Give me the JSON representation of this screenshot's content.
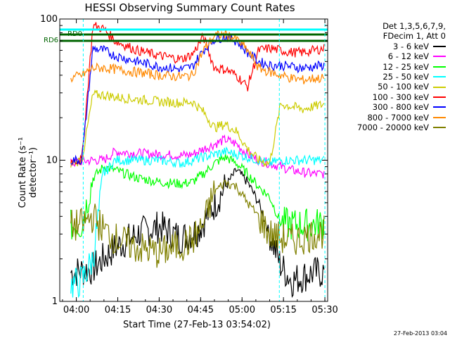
{
  "chart_data": {
    "type": "line",
    "title": "HESSI Observing Summary Count Rates",
    "xlabel": "Start Time (27-Feb-13 03:54:02)",
    "ylabel": "Count Rate (s⁻¹ detector⁻¹)",
    "yscale": "log",
    "ylim": [
      1,
      100
    ],
    "y_ticks": [
      "1",
      "10",
      "100"
    ],
    "xlim_minutes": [
      0,
      97
    ],
    "x_ticks": [
      "04:00",
      "04:15",
      "04:30",
      "04:45",
      "05:00",
      "05:15",
      "05:30"
    ],
    "grid": false,
    "legend_position": "right",
    "legend_header": [
      "Det 1,3,5,6,7,9,",
      "FDecim 1, Att 0"
    ],
    "attenuator_labels": [
      "RD0",
      "RD6"
    ],
    "series": [
      {
        "name": "3 - 6 keV",
        "color": "#000000",
        "x": [
          4,
          12,
          20,
          28,
          36,
          44,
          50,
          55,
          60,
          64,
          68,
          72,
          76,
          80,
          84,
          88,
          92,
          96
        ],
        "values": [
          1.6,
          1.7,
          2.4,
          3.0,
          3.4,
          2.8,
          3.2,
          4.5,
          6.5,
          8.5,
          7.0,
          5.0,
          3.0,
          1.8,
          1.4,
          1.5,
          1.6,
          1.6
        ]
      },
      {
        "name": "6 - 12 keV",
        "color": "#ff00ff",
        "x": [
          4,
          8,
          12,
          16,
          20,
          28,
          36,
          44,
          48,
          52,
          56,
          60,
          64,
          68,
          72,
          76,
          80,
          84,
          88,
          92,
          96
        ],
        "values": [
          9.5,
          9.8,
          10,
          10,
          11.5,
          11.2,
          11.0,
          10.8,
          11.0,
          12,
          13,
          14,
          13,
          11,
          10,
          9.5,
          9.0,
          8.5,
          8.2,
          8.0,
          8.0
        ]
      },
      {
        "name": "12 - 25 keV",
        "color": "#00ff00",
        "x": [
          4,
          8,
          12,
          16,
          20,
          28,
          36,
          44,
          48,
          52,
          56,
          60,
          64,
          68,
          72,
          76,
          80,
          84,
          88,
          92,
          96
        ],
        "values": [
          3.4,
          3.5,
          7.5,
          9.0,
          8.5,
          7.5,
          7.0,
          6.8,
          7.0,
          8.0,
          9.5,
          10.5,
          9.5,
          8.0,
          6.5,
          5.5,
          3.6,
          3.5,
          3.5,
          3.5,
          3.6
        ]
      },
      {
        "name": "25 - 50 keV",
        "color": "#00ffff",
        "x": [
          4,
          8,
          12,
          16,
          20,
          28,
          36,
          44,
          48,
          52,
          56,
          60,
          64,
          68,
          72,
          76,
          80,
          84,
          88,
          92,
          96
        ],
        "values": [
          1.3,
          1.4,
          2.0,
          8.0,
          10,
          10,
          10,
          9.5,
          10,
          10.5,
          11,
          11.5,
          11,
          10.5,
          10,
          9.5,
          10,
          10,
          10,
          10,
          10
        ]
      },
      {
        "name": "50 - 100 keV",
        "color": "#cccc00",
        "x": [
          4,
          8,
          12,
          16,
          20,
          28,
          36,
          44,
          48,
          52,
          56,
          60,
          64,
          68,
          72,
          76,
          80,
          84,
          88,
          92,
          96
        ],
        "values": [
          9.5,
          10,
          29,
          29,
          28,
          27,
          26,
          25.5,
          26,
          22,
          17,
          18,
          16,
          12,
          10,
          9.5,
          25,
          24,
          23,
          24,
          25
        ]
      },
      {
        "name": "100 - 300 keV",
        "color": "#ff0000",
        "x": [
          4,
          8,
          12,
          16,
          20,
          28,
          36,
          44,
          48,
          52,
          56,
          60,
          64,
          68,
          72,
          76,
          80,
          84,
          88,
          92,
          96
        ],
        "values": [
          10,
          10,
          90,
          85,
          70,
          60,
          55,
          52,
          56,
          75,
          45,
          44,
          40,
          33,
          60,
          62,
          60,
          58,
          58,
          60,
          62
        ]
      },
      {
        "name": "300 - 800 keV",
        "color": "#0000ff",
        "x": [
          4,
          8,
          12,
          16,
          20,
          28,
          36,
          44,
          48,
          52,
          56,
          60,
          64,
          68,
          72,
          76,
          80,
          84,
          88,
          92,
          96
        ],
        "values": [
          10,
          10,
          62,
          60,
          55,
          50,
          46,
          44,
          46,
          60,
          72,
          75,
          70,
          58,
          50,
          47,
          47,
          46,
          45,
          46,
          47
        ]
      },
      {
        "name": "800 - 7000 keV",
        "color": "#ff8800",
        "x": [
          4,
          8,
          12,
          16,
          20,
          28,
          36,
          44,
          48,
          52,
          56,
          60,
          64,
          68,
          72,
          76,
          80,
          84,
          88,
          92,
          96
        ],
        "values": [
          38,
          40,
          45,
          45,
          44,
          42,
          40,
          39,
          40,
          60,
          76,
          78,
          72,
          60,
          45,
          42,
          40,
          38,
          37,
          38,
          38
        ]
      },
      {
        "name": "7000 - 20000 keV",
        "color": "#808000",
        "x": [
          4,
          8,
          12,
          16,
          20,
          28,
          36,
          44,
          48,
          52,
          56,
          60,
          64,
          68,
          72,
          76,
          80,
          84,
          88,
          92,
          96
        ],
        "values": [
          3.4,
          3.5,
          4.0,
          3.2,
          2.8,
          2.4,
          2.2,
          2.5,
          2.7,
          3.5,
          6.0,
          7.0,
          6.5,
          5.0,
          4.0,
          3.0,
          2.8,
          2.7,
          2.8,
          3.0,
          3.1
        ]
      }
    ]
  },
  "timestamp": "27-Feb-2013 03:04"
}
